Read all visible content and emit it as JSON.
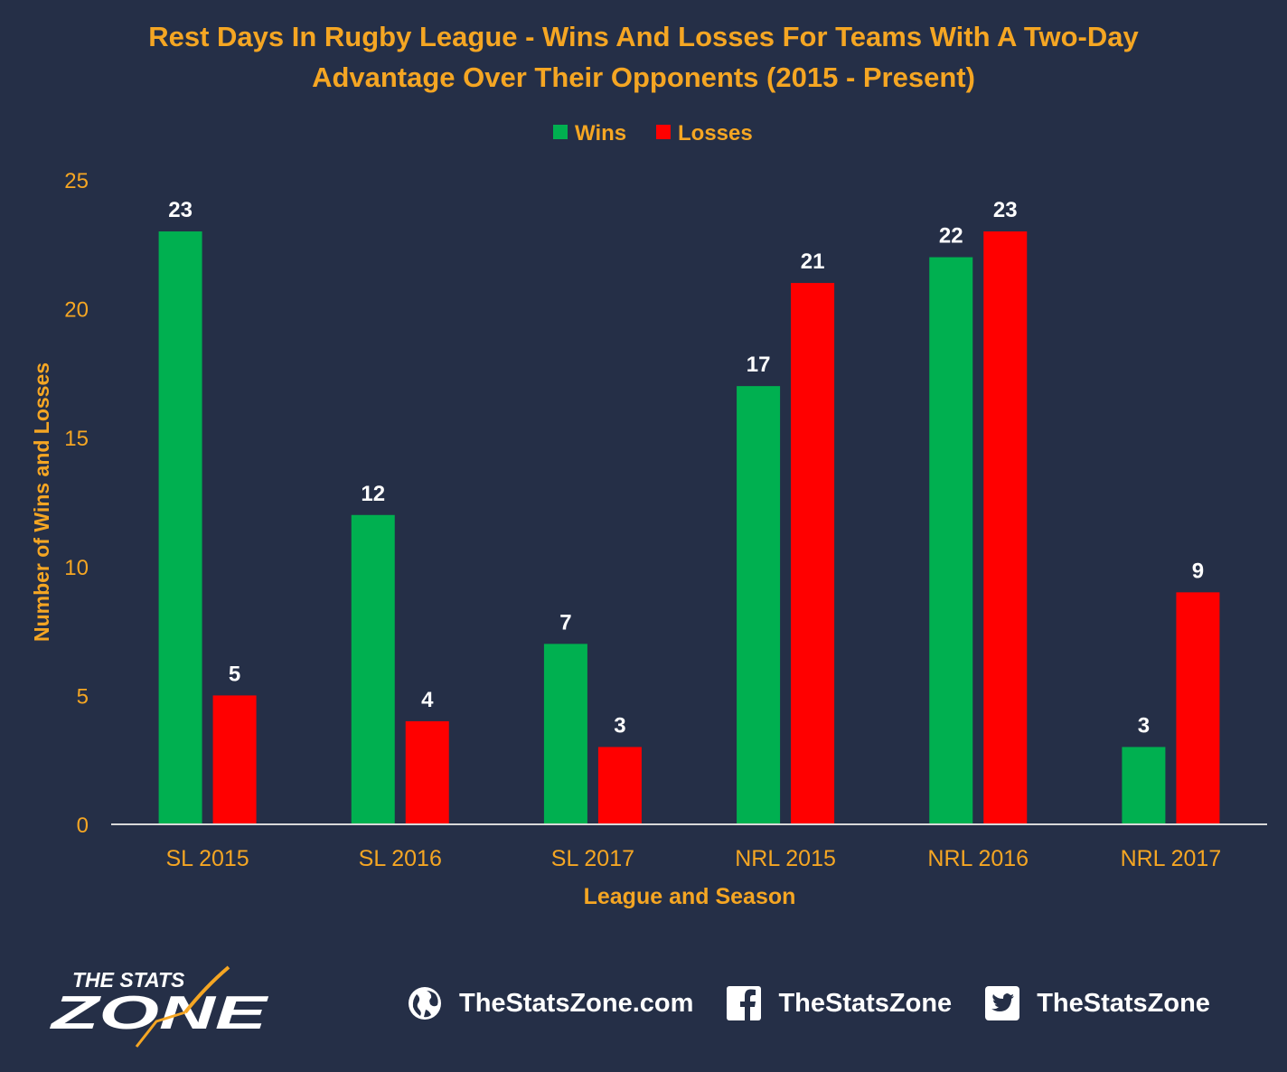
{
  "chart_data": {
    "type": "bar",
    "title_lines": [
      "Rest Days In Rugby League - Wins And Losses For Teams With A Two-Day",
      "Advantage Over Their Opponents (2015 - Present)"
    ],
    "categories": [
      "SL 2015",
      "SL 2016",
      "SL 2017",
      "NRL 2015",
      "NRL 2016",
      "NRL 2017"
    ],
    "series": [
      {
        "name": "Wins",
        "color": "#00b050",
        "values": [
          23,
          12,
          7,
          17,
          22,
          3
        ]
      },
      {
        "name": "Losses",
        "color": "#ff0000",
        "values": [
          5,
          4,
          3,
          21,
          23,
          9
        ]
      }
    ],
    "xlabel": "League and Season",
    "ylabel": "Number of Wins and Losses",
    "ylim": [
      0,
      25
    ],
    "yticks": [
      0,
      5,
      10,
      15,
      20,
      25
    ],
    "grid": false,
    "legend_position": "top-center",
    "data_labels": true,
    "text_color": "#f5a623",
    "background": "#252f47"
  },
  "footer": {
    "logo": {
      "line1": "THE STATS",
      "line2": "ZONE"
    },
    "website": "TheStatsZone.com",
    "facebook": "TheStatsZone",
    "twitter": "TheStatsZone"
  }
}
